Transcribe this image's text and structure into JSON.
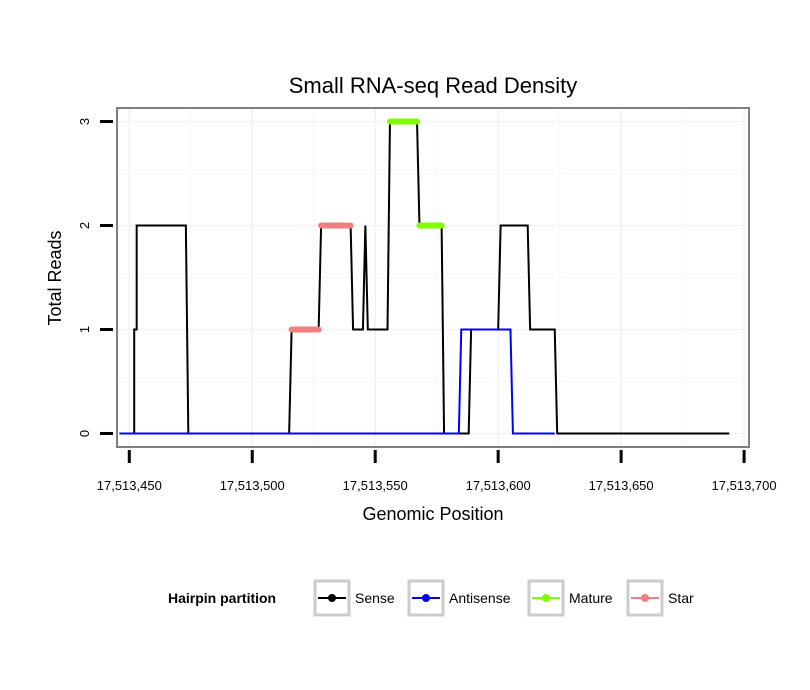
{
  "chart_data": {
    "type": "line",
    "title": "Small RNA-seq Read Density",
    "xlabel": "Genomic Position",
    "ylabel": "Total Reads",
    "xlim": [
      17513445,
      17513702
    ],
    "ylim": [
      -0.13,
      3.13
    ],
    "x_ticks": [
      17513450,
      17513500,
      17513550,
      17513600,
      17513650,
      17513700
    ],
    "x_tick_labels": [
      "17,513,450",
      "17,513,500",
      "17,513,550",
      "17,513,600",
      "17,513,650",
      "17,513,700"
    ],
    "y_ticks": [
      0,
      1,
      2,
      3
    ],
    "y_tick_labels": [
      "0",
      "1",
      "2",
      "3"
    ],
    "grid": true,
    "legend": {
      "title": "Hairpin partition",
      "position": "bottom",
      "entries": [
        "Sense",
        "Antisense",
        "Mature",
        "Star"
      ]
    },
    "series": [
      {
        "name": "Sense",
        "color": "#000000",
        "width": 2,
        "points": [
          [
            17513446,
            0
          ],
          [
            17513452,
            0
          ],
          [
            17513452,
            1
          ],
          [
            17513453,
            1
          ],
          [
            17513453,
            2
          ],
          [
            17513473,
            2
          ],
          [
            17513474,
            0
          ],
          [
            17513515,
            0
          ],
          [
            17513516,
            1
          ],
          [
            17513527,
            1
          ],
          [
            17513528,
            2
          ],
          [
            17513540,
            2
          ],
          [
            17513541,
            1
          ],
          [
            17513545,
            1
          ],
          [
            17513546,
            2
          ],
          [
            17513547,
            1
          ],
          [
            17513555,
            1
          ],
          [
            17513556,
            3
          ],
          [
            17513567,
            3
          ],
          [
            17513568,
            2
          ],
          [
            17513577,
            2
          ],
          [
            17513578,
            0
          ],
          [
            17513588,
            0
          ],
          [
            17513589,
            1
          ],
          [
            17513600,
            1
          ],
          [
            17513601,
            2
          ],
          [
            17513612,
            2
          ],
          [
            17513613,
            1
          ],
          [
            17513623,
            1
          ],
          [
            17513624,
            0
          ],
          [
            17513694,
            0
          ]
        ]
      },
      {
        "name": "Antisense",
        "color": "#0000ff",
        "width": 2,
        "points": [
          [
            17513446,
            0
          ],
          [
            17513584,
            0
          ],
          [
            17513585,
            1
          ],
          [
            17513605,
            1
          ],
          [
            17513606,
            0
          ],
          [
            17513623,
            0
          ]
        ]
      },
      {
        "name": "Mature",
        "color": "#7fff00",
        "width": 6,
        "segments": [
          {
            "x": [
              17513556,
              17513567
            ],
            "y": 3
          },
          {
            "x": [
              17513568,
              17513577
            ],
            "y": 2
          }
        ]
      },
      {
        "name": "Star",
        "color": "#f08080",
        "width": 6,
        "segments": [
          {
            "x": [
              17513516,
              17513527
            ],
            "y": 1
          },
          {
            "x": [
              17513528,
              17513540
            ],
            "y": 2
          }
        ]
      }
    ]
  }
}
